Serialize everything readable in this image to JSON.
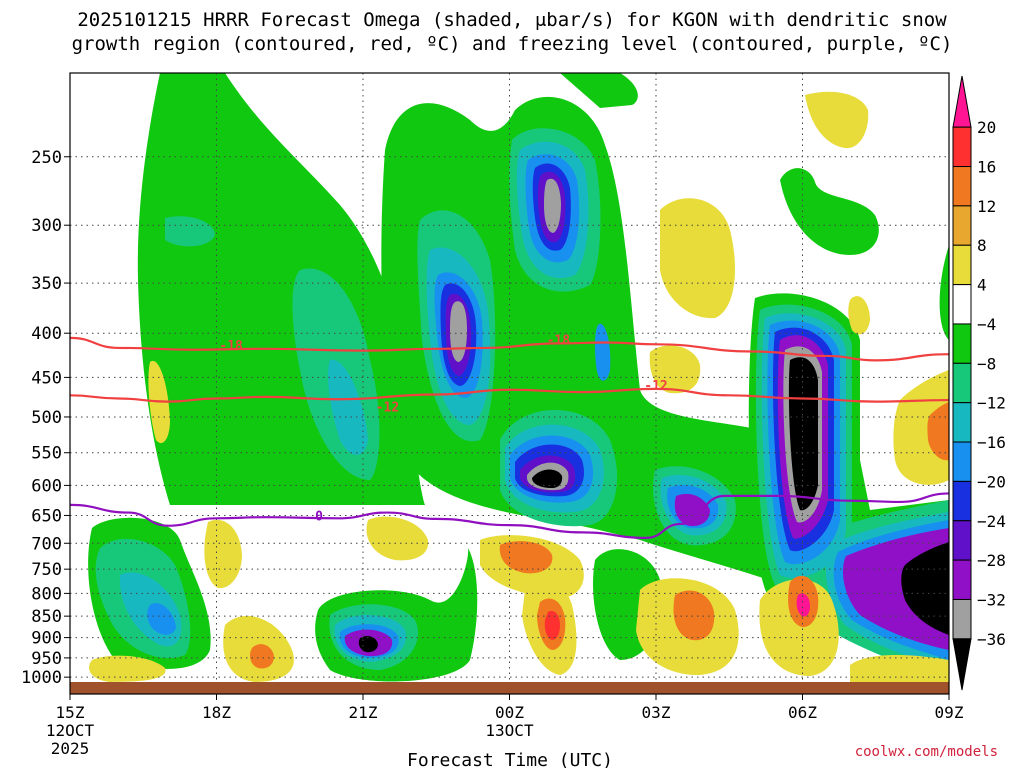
{
  "title_line1": "2025101215 HRRR Forecast Omega (shaded, μbar/s) for KGON with dendritic snow",
  "title_line2": "growth region (contoured, red, ºC) and freezing level (contoured, purple, ºC)",
  "credit": "coolwx.com/models",
  "chart_data": {
    "type": "heatmap",
    "title": "2025101215 HRRR Forecast Omega (shaded, μbar/s) for KGON with dendritic snow growth region (contoured, red, ºC) and freezing level (contoured, purple, ºC)",
    "xlabel": "Forecast Time (UTC)",
    "ylabel": "",
    "x_ticks": [
      {
        "label": "15Z",
        "hour": 0,
        "sub1": "12OCT",
        "sub2": "2025"
      },
      {
        "label": "18Z",
        "hour": 3
      },
      {
        "label": "21Z",
        "hour": 6
      },
      {
        "label": "00Z",
        "hour": 9,
        "sub1": "13OCT"
      },
      {
        "label": "03Z",
        "hour": 12
      },
      {
        "label": "06Z",
        "hour": 15
      },
      {
        "label": "09Z",
        "hour": 18
      }
    ],
    "y_levels": [
      250,
      300,
      350,
      400,
      450,
      500,
      550,
      600,
      650,
      700,
      750,
      800,
      850,
      900,
      950,
      1000
    ],
    "ylim": [
      200,
      1013
    ],
    "xlim": [
      0,
      18
    ],
    "colorbar": {
      "labels": [
        "20",
        "16",
        "12",
        "8",
        "4",
        "−4",
        "−8",
        "−12",
        "−16",
        "−20",
        "−24",
        "−28",
        "−32",
        "−36"
      ],
      "colors": [
        "#ff1493",
        "#ff3030",
        "#f07820",
        "#e8a830",
        "#e8dc3a",
        "#ffffff",
        "#10c810",
        "#18c87a",
        "#18b8c0",
        "#1890f0",
        "#1830e0",
        "#6010c8",
        "#9010c8",
        "#a0a0a0",
        "#000000"
      ]
    },
    "series": [
      {
        "name": "-18",
        "color": "#f04040",
        "points": [
          [
            0,
            405
          ],
          [
            1,
            416
          ],
          [
            2.5,
            418
          ],
          [
            4,
            417
          ],
          [
            6,
            419
          ],
          [
            7.5,
            417
          ],
          [
            8.5,
            416
          ],
          [
            10,
            411
          ],
          [
            11,
            410
          ],
          [
            12,
            412
          ],
          [
            14,
            420
          ],
          [
            15.5,
            425
          ],
          [
            16.5,
            430
          ],
          [
            18,
            423
          ]
        ],
        "label_at": [
          [
            3.3,
            413
          ],
          [
            10,
            407
          ]
        ]
      },
      {
        "name": "-12",
        "color": "#f04040",
        "points": [
          [
            0,
            472
          ],
          [
            1,
            476
          ],
          [
            2,
            480
          ],
          [
            3,
            476
          ],
          [
            4,
            474
          ],
          [
            5.5,
            477
          ],
          [
            7.5,
            471
          ],
          [
            9,
            465
          ],
          [
            10.5,
            468
          ],
          [
            12,
            464
          ],
          [
            13.5,
            472
          ],
          [
            15,
            476
          ],
          [
            16.5,
            480
          ],
          [
            18,
            478
          ]
        ],
        "label_at": [
          [
            6.5,
            486
          ],
          [
            12,
            459
          ]
        ]
      },
      {
        "name": "0",
        "color": "#9010c0",
        "points": [
          [
            0,
            632
          ],
          [
            1.2,
            645
          ],
          [
            2,
            668
          ],
          [
            3,
            655
          ],
          [
            4,
            653
          ],
          [
            5.5,
            655
          ],
          [
            6.5,
            645
          ],
          [
            7.5,
            656
          ],
          [
            9,
            667
          ],
          [
            10.5,
            680
          ],
          [
            11.8,
            690
          ],
          [
            12.5,
            665
          ],
          [
            13.4,
            617
          ],
          [
            14.5,
            617
          ],
          [
            16,
            625
          ],
          [
            17,
            627
          ],
          [
            18,
            613
          ]
        ],
        "label_at": [
          [
            5.1,
            650
          ]
        ]
      }
    ]
  }
}
